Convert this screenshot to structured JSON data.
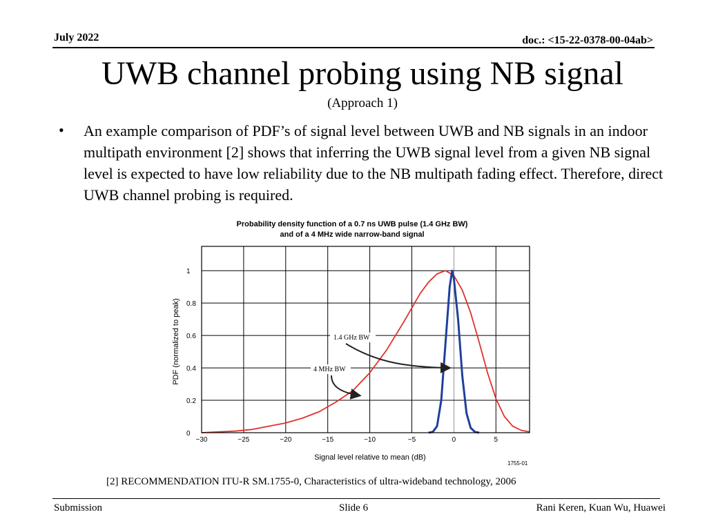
{
  "header": {
    "date": "July 2022",
    "doc": "doc.: <15-22-0378-00-04ab>"
  },
  "slide": {
    "title": "UWB channel probing using NB signal",
    "subtitle": "(Approach 1)",
    "bullet_marker": "•",
    "bullet_text": "An example comparison of PDF’s of signal level between UWB and NB signals in an indoor multipath environment [2] shows that inferring the UWB signal level from a given NB signal level is expected to have low reliability due to the NB multipath fading effect. Therefore, direct UWB channel probing is required.",
    "reference": "[2] RECOMMENDATION ITU-R SM.1755-0, Characteristics of ultra-wideband technology, 2006"
  },
  "footer": {
    "left": "Submission",
    "center": "Slide 6",
    "right": "Rani Keren, Kuan Wu, Huawei"
  },
  "chart_data": {
    "type": "line",
    "title": "Probability density function of a 0.7 ns UWB pulse (1.4 GHz BW)",
    "subtitle": "and of a 4 MHz wide narrow-band signal",
    "xlabel": "Signal level relative to mean (dB)",
    "ylabel": "PDF (normalized to peak)",
    "xlim": [
      -30,
      9
    ],
    "ylim": [
      0,
      1.15
    ],
    "x_ticks": [
      -30,
      -25,
      -20,
      -15,
      -10,
      -5,
      0,
      5
    ],
    "x_tick_labels": [
      "−30",
      "−25",
      "−20",
      "−15",
      "−10",
      "−5",
      "0",
      "5"
    ],
    "y_ticks": [
      0,
      0.2,
      0.4,
      0.6,
      0.8,
      1
    ],
    "y_tick_labels": [
      "0",
      "0.2",
      "0.4",
      "0.6",
      "0.8",
      "1"
    ],
    "grid": true,
    "figure_number": "1755-01",
    "annotations": [
      {
        "text": "1.4 GHz BW",
        "series": "1.4 GHz BW"
      },
      {
        "text": "4 MHz BW",
        "series": "4 MHz BW"
      }
    ],
    "series": [
      {
        "name": "4 MHz BW",
        "color": "#e0302a",
        "x": [
          -30,
          -28,
          -26,
          -24,
          -22,
          -20,
          -18,
          -16,
          -14,
          -12,
          -10,
          -8,
          -6,
          -4,
          -3,
          -2,
          -1,
          0,
          1,
          2,
          3,
          4,
          5,
          6,
          7,
          8,
          9
        ],
        "y": [
          0,
          0.005,
          0.01,
          0.02,
          0.04,
          0.06,
          0.09,
          0.13,
          0.19,
          0.26,
          0.37,
          0.51,
          0.68,
          0.86,
          0.93,
          0.98,
          1.0,
          0.97,
          0.88,
          0.74,
          0.56,
          0.37,
          0.21,
          0.1,
          0.04,
          0.015,
          0.005
        ]
      },
      {
        "name": "1.4 GHz BW",
        "color": "#1f3f9a",
        "x": [
          -3,
          -2.5,
          -2,
          -1.5,
          -1,
          -0.5,
          -0.2,
          0,
          0.5,
          1,
          1.5,
          2,
          2.5,
          3
        ],
        "y": [
          0,
          0.005,
          0.04,
          0.2,
          0.55,
          0.9,
          1.0,
          0.95,
          0.7,
          0.35,
          0.12,
          0.03,
          0.005,
          0
        ]
      }
    ]
  }
}
